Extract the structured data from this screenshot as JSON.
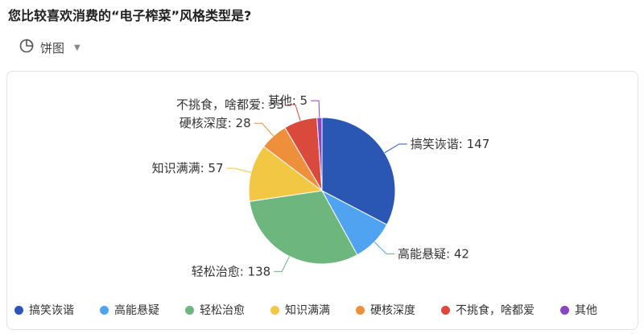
{
  "question": "您比较喜欢消费的“电子榨菜”风格类型是?",
  "chart_type_selector": {
    "label": "饼图",
    "icon": "pie-chart-icon",
    "caret_icon": "caret-down-icon"
  },
  "chart_data": {
    "type": "pie",
    "title": "",
    "label_format": "{name}: {value}",
    "categories": [
      "搞笑诙谐",
      "高能悬疑",
      "轻松治愈",
      "知识满满",
      "硬核深度",
      "不挑食，啥都爱",
      "其他"
    ],
    "values": [
      147,
      42,
      138,
      57,
      28,
      33,
      5
    ],
    "colors": [
      "#2a56b4",
      "#4fa3f0",
      "#6db67e",
      "#f2c744",
      "#ee8f3c",
      "#d9493c",
      "#8b44c4"
    ],
    "legend_position": "bottom"
  }
}
